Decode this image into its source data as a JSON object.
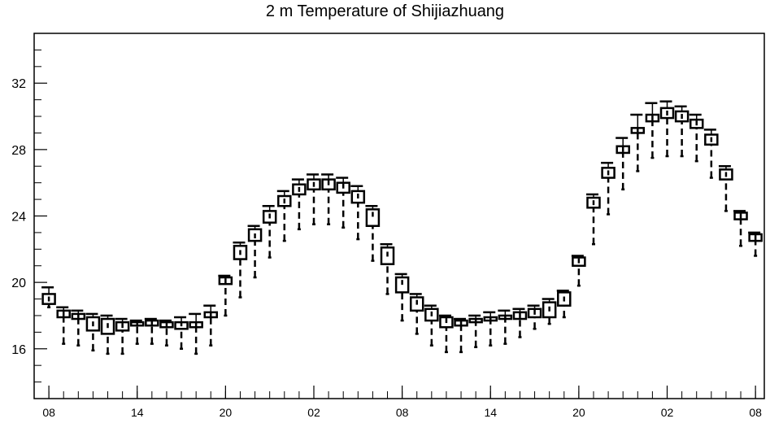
{
  "chart_data": {
    "type": "box",
    "title": "2 m Temperature of Shijiazhuang",
    "xlabel": "",
    "ylabel": "",
    "ylim": [
      13,
      35
    ],
    "yticks": [
      16,
      20,
      24,
      28,
      32
    ],
    "x_tick_labels": [
      "08",
      "14",
      "20",
      "02",
      "08",
      "14",
      "20",
      "02",
      "08"
    ],
    "x_tick_positions": [
      0,
      6,
      12,
      18,
      24,
      30,
      36,
      42,
      48
    ],
    "xlim": [
      -1,
      48.6
    ],
    "grid": false,
    "legend": "none",
    "boxes": [
      {
        "t": 0,
        "low": 18.5,
        "q1": 18.7,
        "median": 19.0,
        "q3": 19.3,
        "high": 19.7
      },
      {
        "t": 1,
        "low": 16.3,
        "q1": 17.9,
        "median": 18.1,
        "q3": 18.3,
        "high": 18.5
      },
      {
        "t": 2,
        "low": 16.2,
        "q1": 17.8,
        "median": 18.0,
        "q3": 18.1,
        "high": 18.3
      },
      {
        "t": 3,
        "low": 15.9,
        "q1": 17.1,
        "median": 17.5,
        "q3": 17.9,
        "high": 18.1
      },
      {
        "t": 4,
        "low": 15.7,
        "q1": 16.9,
        "median": 17.4,
        "q3": 17.8,
        "high": 18.0
      },
      {
        "t": 5,
        "low": 15.7,
        "q1": 17.1,
        "median": 17.4,
        "q3": 17.6,
        "high": 17.8
      },
      {
        "t": 6,
        "low": 16.3,
        "q1": 17.4,
        "median": 17.5,
        "q3": 17.6,
        "high": 17.7
      },
      {
        "t": 7,
        "low": 16.3,
        "q1": 17.4,
        "median": 17.6,
        "q3": 17.7,
        "high": 17.8
      },
      {
        "t": 8,
        "low": 16.2,
        "q1": 17.3,
        "median": 17.5,
        "q3": 17.6,
        "high": 17.7
      },
      {
        "t": 9,
        "low": 16.0,
        "q1": 17.2,
        "median": 17.5,
        "q3": 17.6,
        "high": 17.9
      },
      {
        "t": 10,
        "low": 15.7,
        "q1": 17.3,
        "median": 17.5,
        "q3": 17.6,
        "high": 18.1
      },
      {
        "t": 11,
        "low": 16.2,
        "q1": 17.9,
        "median": 18.1,
        "q3": 18.2,
        "high": 18.6
      },
      {
        "t": 12,
        "low": 18.0,
        "q1": 19.9,
        "median": 20.1,
        "q3": 20.3,
        "high": 20.4
      },
      {
        "t": 13,
        "low": 19.1,
        "q1": 21.4,
        "median": 21.8,
        "q3": 22.2,
        "high": 22.4
      },
      {
        "t": 14,
        "low": 20.3,
        "q1": 22.5,
        "median": 22.8,
        "q3": 23.2,
        "high": 23.4
      },
      {
        "t": 15,
        "low": 21.5,
        "q1": 23.6,
        "median": 24.0,
        "q3": 24.3,
        "high": 24.6
      },
      {
        "t": 16,
        "low": 22.5,
        "q1": 24.6,
        "median": 24.9,
        "q3": 25.2,
        "high": 25.5
      },
      {
        "t": 17,
        "low": 23.2,
        "q1": 25.3,
        "median": 25.6,
        "q3": 25.9,
        "high": 26.2
      },
      {
        "t": 18,
        "low": 23.5,
        "q1": 25.6,
        "median": 25.9,
        "q3": 26.2,
        "high": 26.5
      },
      {
        "t": 19,
        "low": 23.5,
        "q1": 25.6,
        "median": 26.0,
        "q3": 26.2,
        "high": 26.5
      },
      {
        "t": 20,
        "low": 23.3,
        "q1": 25.4,
        "median": 25.8,
        "q3": 26.0,
        "high": 26.3
      },
      {
        "t": 21,
        "low": 22.6,
        "q1": 24.8,
        "median": 25.2,
        "q3": 25.5,
        "high": 25.8
      },
      {
        "t": 22,
        "low": 21.3,
        "q1": 23.4,
        "median": 24.1,
        "q3": 24.4,
        "high": 24.6
      },
      {
        "t": 23,
        "low": 19.3,
        "q1": 21.1,
        "median": 21.7,
        "q3": 22.1,
        "high": 22.3
      },
      {
        "t": 24,
        "low": 17.7,
        "q1": 19.4,
        "median": 20.0,
        "q3": 20.3,
        "high": 20.5
      },
      {
        "t": 25,
        "low": 16.9,
        "q1": 18.3,
        "median": 18.8,
        "q3": 19.1,
        "high": 19.3
      },
      {
        "t": 26,
        "low": 16.2,
        "q1": 17.7,
        "median": 18.1,
        "q3": 18.4,
        "high": 18.6
      },
      {
        "t": 27,
        "low": 15.8,
        "q1": 17.3,
        "median": 17.7,
        "q3": 17.9,
        "high": 18.0
      },
      {
        "t": 28,
        "low": 15.8,
        "q1": 17.4,
        "median": 17.6,
        "q3": 17.7,
        "high": 17.8
      },
      {
        "t": 29,
        "low": 16.1,
        "q1": 17.6,
        "median": 17.7,
        "q3": 17.8,
        "high": 18.0
      },
      {
        "t": 30,
        "low": 16.2,
        "q1": 17.7,
        "median": 17.8,
        "q3": 17.9,
        "high": 18.2
      },
      {
        "t": 31,
        "low": 16.3,
        "q1": 17.8,
        "median": 17.9,
        "q3": 18.0,
        "high": 18.3
      },
      {
        "t": 32,
        "low": 16.7,
        "q1": 17.8,
        "median": 18.0,
        "q3": 18.2,
        "high": 18.4
      },
      {
        "t": 33,
        "low": 17.2,
        "q1": 17.9,
        "median": 18.2,
        "q3": 18.4,
        "high": 18.6
      },
      {
        "t": 34,
        "low": 17.5,
        "q1": 17.9,
        "median": 18.4,
        "q3": 18.8,
        "high": 19.0
      },
      {
        "t": 35,
        "low": 17.9,
        "q1": 18.6,
        "median": 19.0,
        "q3": 19.4,
        "high": 19.5
      },
      {
        "t": 36,
        "low": 19.8,
        "q1": 21.0,
        "median": 21.3,
        "q3": 21.5,
        "high": 21.6
      },
      {
        "t": 37,
        "low": 22.3,
        "q1": 24.5,
        "median": 24.8,
        "q3": 25.1,
        "high": 25.3
      },
      {
        "t": 38,
        "low": 24.1,
        "q1": 26.3,
        "median": 26.6,
        "q3": 26.9,
        "high": 27.2
      },
      {
        "t": 39,
        "low": 25.6,
        "q1": 27.8,
        "median": 28.0,
        "q3": 28.2,
        "high": 28.7
      },
      {
        "t": 40,
        "low": 26.7,
        "q1": 29.0,
        "median": 29.2,
        "q3": 29.3,
        "high": 30.1
      },
      {
        "t": 41,
        "low": 27.5,
        "q1": 29.7,
        "median": 29.9,
        "q3": 30.1,
        "high": 30.8
      },
      {
        "t": 42,
        "low": 27.6,
        "q1": 29.9,
        "median": 30.2,
        "q3": 30.5,
        "high": 30.9
      },
      {
        "t": 43,
        "low": 27.6,
        "q1": 29.7,
        "median": 30.0,
        "q3": 30.3,
        "high": 30.6
      },
      {
        "t": 44,
        "low": 27.3,
        "q1": 29.3,
        "median": 29.6,
        "q3": 29.8,
        "high": 30.1
      },
      {
        "t": 45,
        "low": 26.3,
        "q1": 28.3,
        "median": 28.6,
        "q3": 28.9,
        "high": 29.2
      },
      {
        "t": 46,
        "low": 24.3,
        "q1": 26.2,
        "median": 26.5,
        "q3": 26.8,
        "high": 27.0
      },
      {
        "t": 47,
        "low": 22.2,
        "q1": 23.8,
        "median": 24.0,
        "q3": 24.2,
        "high": 24.3
      },
      {
        "t": 48,
        "low": 21.6,
        "q1": 22.5,
        "median": 22.7,
        "q3": 22.9,
        "high": 23.0
      }
    ]
  }
}
